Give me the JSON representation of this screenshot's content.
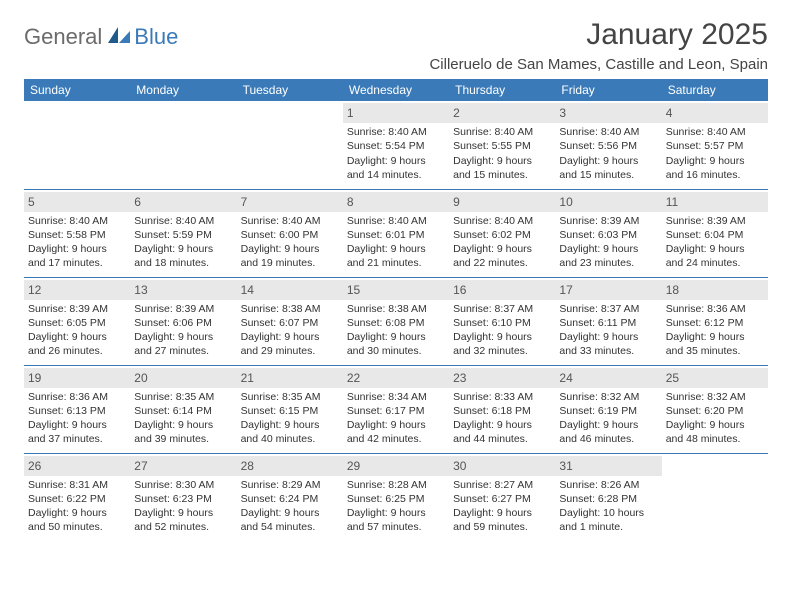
{
  "logo": {
    "general": "General",
    "blue": "Blue"
  },
  "title": "January 2025",
  "location": "Cilleruelo de San Mames, Castille and Leon, Spain",
  "weekdays": [
    "Sunday",
    "Monday",
    "Tuesday",
    "Wednesday",
    "Thursday",
    "Friday",
    "Saturday"
  ],
  "colors": {
    "header_bg": "#3a7ab8",
    "header_text": "#ffffff",
    "daynum_bg": "#e8e8e8",
    "text": "#333333",
    "logo_gray": "#6b6b6b",
    "logo_blue": "#3a7ab8",
    "border": "#3a7ab8",
    "background": "#ffffff"
  },
  "fonts": {
    "title_size_pt": 22,
    "location_size_pt": 11,
    "weekday_size_pt": 9,
    "cell_size_pt": 8
  },
  "weeks": [
    [
      {
        "n": "",
        "sr": "",
        "ss": "",
        "dl": ""
      },
      {
        "n": "",
        "sr": "",
        "ss": "",
        "dl": ""
      },
      {
        "n": "",
        "sr": "",
        "ss": "",
        "dl": ""
      },
      {
        "n": "1",
        "sr": "Sunrise: 8:40 AM",
        "ss": "Sunset: 5:54 PM",
        "dl": "Daylight: 9 hours and 14 minutes."
      },
      {
        "n": "2",
        "sr": "Sunrise: 8:40 AM",
        "ss": "Sunset: 5:55 PM",
        "dl": "Daylight: 9 hours and 15 minutes."
      },
      {
        "n": "3",
        "sr": "Sunrise: 8:40 AM",
        "ss": "Sunset: 5:56 PM",
        "dl": "Daylight: 9 hours and 15 minutes."
      },
      {
        "n": "4",
        "sr": "Sunrise: 8:40 AM",
        "ss": "Sunset: 5:57 PM",
        "dl": "Daylight: 9 hours and 16 minutes."
      }
    ],
    [
      {
        "n": "5",
        "sr": "Sunrise: 8:40 AM",
        "ss": "Sunset: 5:58 PM",
        "dl": "Daylight: 9 hours and 17 minutes."
      },
      {
        "n": "6",
        "sr": "Sunrise: 8:40 AM",
        "ss": "Sunset: 5:59 PM",
        "dl": "Daylight: 9 hours and 18 minutes."
      },
      {
        "n": "7",
        "sr": "Sunrise: 8:40 AM",
        "ss": "Sunset: 6:00 PM",
        "dl": "Daylight: 9 hours and 19 minutes."
      },
      {
        "n": "8",
        "sr": "Sunrise: 8:40 AM",
        "ss": "Sunset: 6:01 PM",
        "dl": "Daylight: 9 hours and 21 minutes."
      },
      {
        "n": "9",
        "sr": "Sunrise: 8:40 AM",
        "ss": "Sunset: 6:02 PM",
        "dl": "Daylight: 9 hours and 22 minutes."
      },
      {
        "n": "10",
        "sr": "Sunrise: 8:39 AM",
        "ss": "Sunset: 6:03 PM",
        "dl": "Daylight: 9 hours and 23 minutes."
      },
      {
        "n": "11",
        "sr": "Sunrise: 8:39 AM",
        "ss": "Sunset: 6:04 PM",
        "dl": "Daylight: 9 hours and 24 minutes."
      }
    ],
    [
      {
        "n": "12",
        "sr": "Sunrise: 8:39 AM",
        "ss": "Sunset: 6:05 PM",
        "dl": "Daylight: 9 hours and 26 minutes."
      },
      {
        "n": "13",
        "sr": "Sunrise: 8:39 AM",
        "ss": "Sunset: 6:06 PM",
        "dl": "Daylight: 9 hours and 27 minutes."
      },
      {
        "n": "14",
        "sr": "Sunrise: 8:38 AM",
        "ss": "Sunset: 6:07 PM",
        "dl": "Daylight: 9 hours and 29 minutes."
      },
      {
        "n": "15",
        "sr": "Sunrise: 8:38 AM",
        "ss": "Sunset: 6:08 PM",
        "dl": "Daylight: 9 hours and 30 minutes."
      },
      {
        "n": "16",
        "sr": "Sunrise: 8:37 AM",
        "ss": "Sunset: 6:10 PM",
        "dl": "Daylight: 9 hours and 32 minutes."
      },
      {
        "n": "17",
        "sr": "Sunrise: 8:37 AM",
        "ss": "Sunset: 6:11 PM",
        "dl": "Daylight: 9 hours and 33 minutes."
      },
      {
        "n": "18",
        "sr": "Sunrise: 8:36 AM",
        "ss": "Sunset: 6:12 PM",
        "dl": "Daylight: 9 hours and 35 minutes."
      }
    ],
    [
      {
        "n": "19",
        "sr": "Sunrise: 8:36 AM",
        "ss": "Sunset: 6:13 PM",
        "dl": "Daylight: 9 hours and 37 minutes."
      },
      {
        "n": "20",
        "sr": "Sunrise: 8:35 AM",
        "ss": "Sunset: 6:14 PM",
        "dl": "Daylight: 9 hours and 39 minutes."
      },
      {
        "n": "21",
        "sr": "Sunrise: 8:35 AM",
        "ss": "Sunset: 6:15 PM",
        "dl": "Daylight: 9 hours and 40 minutes."
      },
      {
        "n": "22",
        "sr": "Sunrise: 8:34 AM",
        "ss": "Sunset: 6:17 PM",
        "dl": "Daylight: 9 hours and 42 minutes."
      },
      {
        "n": "23",
        "sr": "Sunrise: 8:33 AM",
        "ss": "Sunset: 6:18 PM",
        "dl": "Daylight: 9 hours and 44 minutes."
      },
      {
        "n": "24",
        "sr": "Sunrise: 8:32 AM",
        "ss": "Sunset: 6:19 PM",
        "dl": "Daylight: 9 hours and 46 minutes."
      },
      {
        "n": "25",
        "sr": "Sunrise: 8:32 AM",
        "ss": "Sunset: 6:20 PM",
        "dl": "Daylight: 9 hours and 48 minutes."
      }
    ],
    [
      {
        "n": "26",
        "sr": "Sunrise: 8:31 AM",
        "ss": "Sunset: 6:22 PM",
        "dl": "Daylight: 9 hours and 50 minutes."
      },
      {
        "n": "27",
        "sr": "Sunrise: 8:30 AM",
        "ss": "Sunset: 6:23 PM",
        "dl": "Daylight: 9 hours and 52 minutes."
      },
      {
        "n": "28",
        "sr": "Sunrise: 8:29 AM",
        "ss": "Sunset: 6:24 PM",
        "dl": "Daylight: 9 hours and 54 minutes."
      },
      {
        "n": "29",
        "sr": "Sunrise: 8:28 AM",
        "ss": "Sunset: 6:25 PM",
        "dl": "Daylight: 9 hours and 57 minutes."
      },
      {
        "n": "30",
        "sr": "Sunrise: 8:27 AM",
        "ss": "Sunset: 6:27 PM",
        "dl": "Daylight: 9 hours and 59 minutes."
      },
      {
        "n": "31",
        "sr": "Sunrise: 8:26 AM",
        "ss": "Sunset: 6:28 PM",
        "dl": "Daylight: 10 hours and 1 minute."
      },
      {
        "n": "",
        "sr": "",
        "ss": "",
        "dl": ""
      }
    ]
  ]
}
